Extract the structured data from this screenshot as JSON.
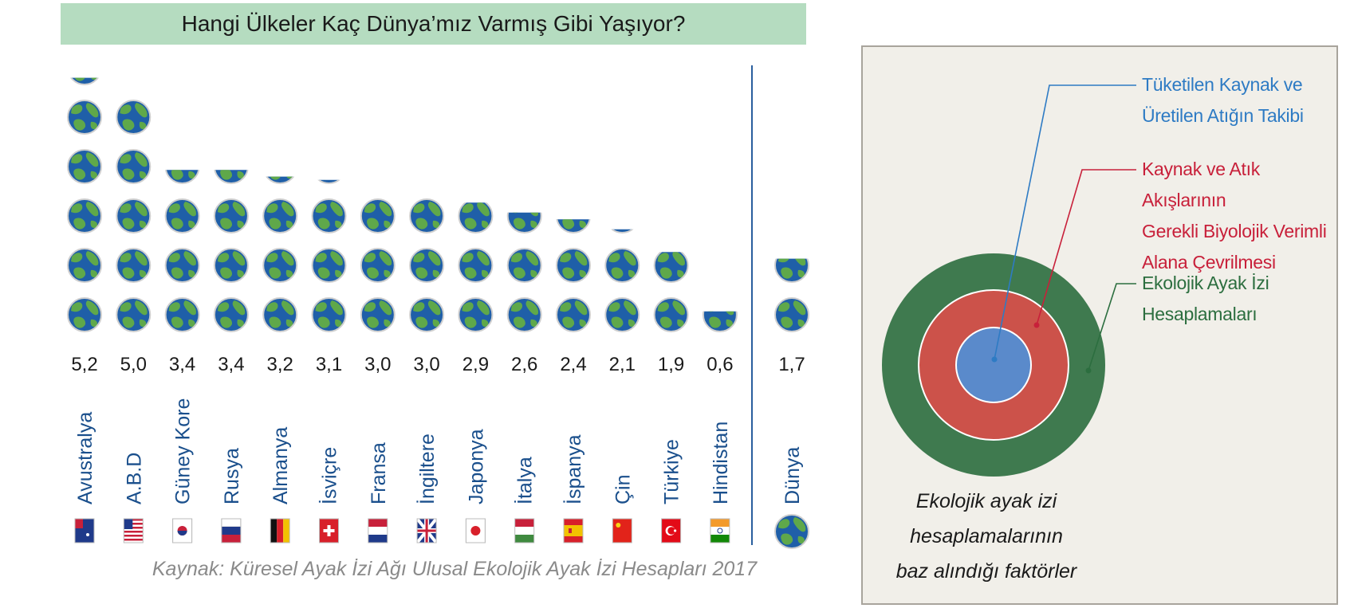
{
  "chart_data": {
    "type": "bar",
    "title": "Hangi Ülkeler Kaç Dünya’mız Varmış Gibi Yaşıyor?",
    "categories": [
      "Avustralya",
      "A.B.D",
      "Güney Kore",
      "Rusya",
      "Almanya",
      "İsviçre",
      "Fransa",
      "İngiltere",
      "Japonya",
      "İtalya",
      "İspanya",
      "Çin",
      "Türkiye",
      "Hindistan"
    ],
    "values": [
      5.2,
      5.0,
      3.4,
      3.4,
      3.2,
      3.1,
      3.0,
      3.0,
      2.9,
      2.6,
      2.4,
      2.1,
      1.9,
      0.6
    ],
    "value_labels": [
      "5,2",
      "5,0",
      "3,4",
      "3,4",
      "3,2",
      "3,1",
      "3,0",
      "3,0",
      "2,9",
      "2,6",
      "2,4",
      "2,1",
      "1,9",
      "0,6"
    ],
    "reference": {
      "label": "Dünya",
      "value": 1.7,
      "value_label": "1,7"
    },
    "source": "Kaynak: Küresel Ayak İzi Ağı Ulusal Ekolojik Ayak İzi Hesapları 2017",
    "colors": {
      "ocean": "#1f5fa8",
      "land": "#5fa84a",
      "title_bg": "#b5dcc0",
      "label_blue": "#1a4f8c",
      "divider": "#2a5f9e"
    }
  },
  "factors_panel": {
    "items": [
      {
        "text": "Tüketilen Kaynak ve\nÜretilen Atığın Takibi",
        "color": "#2e7bc4"
      },
      {
        "text": "Kaynak ve Atık Akışlarının\nGerekli Biyolojik Verimli\nAlana Çevrilmesi",
        "color": "#c8203a"
      },
      {
        "text": "Ekolojik Ayak İzi\nHesaplamaları",
        "color": "#2c6e3f"
      }
    ],
    "caption": "Ekolojik ayak izi\nhesaplamalarının\nbaz alındığı faktörler",
    "colors": {
      "outer": "#3f7a4f",
      "middle": "#cc524a",
      "inner": "#5a8acb"
    }
  }
}
